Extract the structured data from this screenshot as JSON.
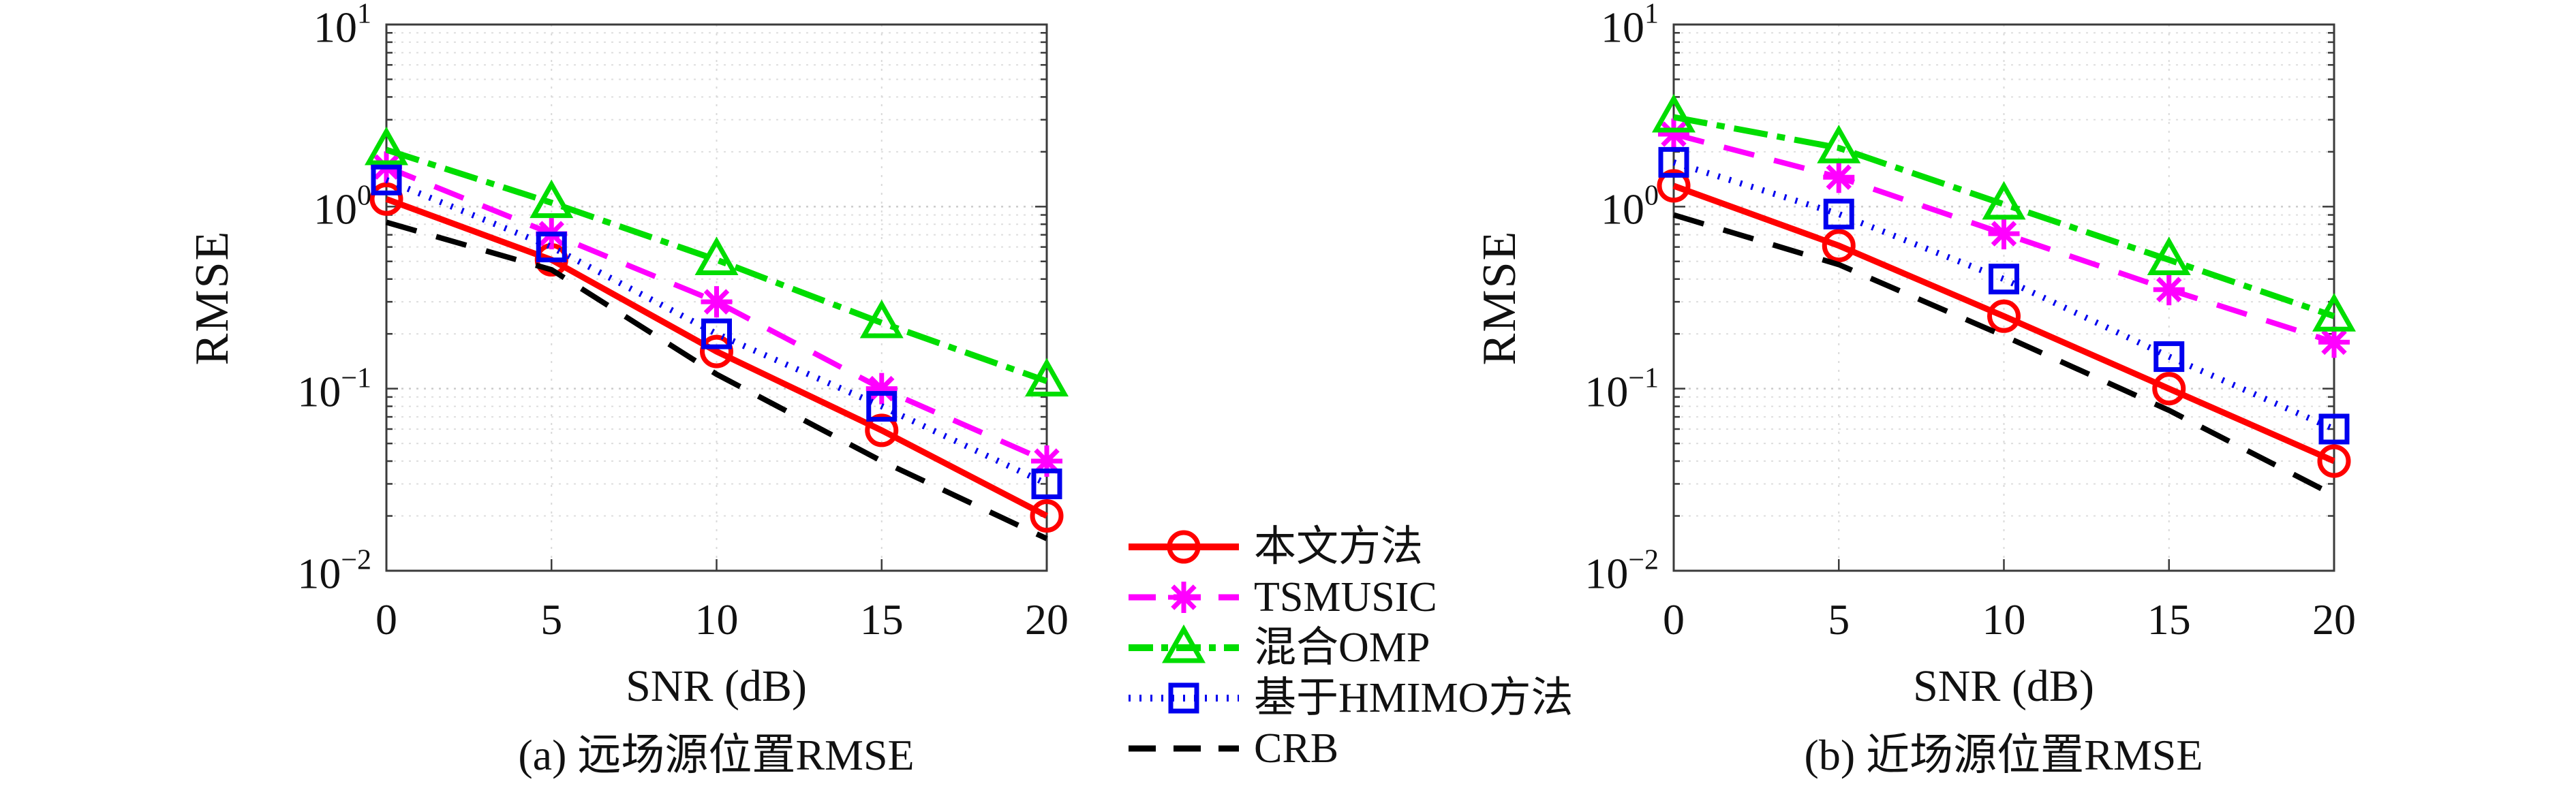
{
  "figure_title": "",
  "legend": {
    "items": [
      {
        "label": "本文方法",
        "color": "#ff0000",
        "dash": "solid",
        "marker": "circle"
      },
      {
        "label": "TSMUSIC",
        "color": "#ff00ff",
        "dash": "dashed",
        "marker": "asterisk"
      },
      {
        "label": "混合OMP",
        "color": "#00dd00",
        "dash": "dashdot",
        "marker": "triangle"
      },
      {
        "label": "基于HMIMO方法",
        "color": "#0000ee",
        "dash": "dotted",
        "marker": "square"
      },
      {
        "label": "CRB",
        "color": "#000000",
        "dash": "dashed",
        "marker": "none"
      }
    ]
  },
  "chart_data": [
    {
      "type": "line",
      "caption": "(a) 远场源位置RMSE",
      "xlabel": "SNR (dB)",
      "ylabel": "RMSE",
      "y_scale": "log",
      "ylim": [
        0.01,
        10
      ],
      "y_tick_exponents": [
        1,
        0,
        -1,
        -2
      ],
      "x_ticks": [
        0,
        5,
        10,
        15,
        20
      ],
      "x": [
        0,
        5,
        10,
        15,
        20
      ],
      "grid": true,
      "legend_position": "below-center-between-charts",
      "series": [
        {
          "name": "本文方法",
          "values": [
            1.1,
            0.51,
            0.16,
            0.059,
            0.02
          ]
        },
        {
          "name": "TSMUSIC",
          "values": [
            1.65,
            0.71,
            0.3,
            0.1,
            0.04
          ]
        },
        {
          "name": "混合OMP",
          "values": [
            2.05,
            1.05,
            0.51,
            0.23,
            0.11
          ]
        },
        {
          "name": "基于HMIMO方法",
          "values": [
            1.4,
            0.6,
            0.2,
            0.08,
            0.03
          ]
        },
        {
          "name": "CRB",
          "values": [
            0.82,
            0.45,
            0.12,
            0.04,
            0.015
          ]
        }
      ]
    },
    {
      "type": "line",
      "caption": "(b) 近场源位置RMSE",
      "xlabel": "SNR (dB)",
      "ylabel": "RMSE",
      "y_scale": "log",
      "ylim": [
        0.01,
        10
      ],
      "y_tick_exponents": [
        1,
        0,
        -1,
        -2
      ],
      "x_ticks": [
        0,
        5,
        10,
        15,
        20
      ],
      "x": [
        0,
        5,
        10,
        15,
        20
      ],
      "grid": true,
      "series": [
        {
          "name": "本文方法",
          "values": [
            1.3,
            0.61,
            0.25,
            0.1,
            0.04
          ]
        },
        {
          "name": "TSMUSIC",
          "values": [
            2.5,
            1.45,
            0.71,
            0.35,
            0.18
          ]
        },
        {
          "name": "混合OMP",
          "values": [
            3.1,
            2.1,
            1.03,
            0.51,
            0.25
          ]
        },
        {
          "name": "基于HMIMO方法",
          "values": [
            1.75,
            0.91,
            0.4,
            0.15,
            0.06
          ]
        },
        {
          "name": "CRB",
          "values": [
            0.9,
            0.48,
            0.195,
            0.076,
            0.026
          ]
        }
      ]
    }
  ]
}
